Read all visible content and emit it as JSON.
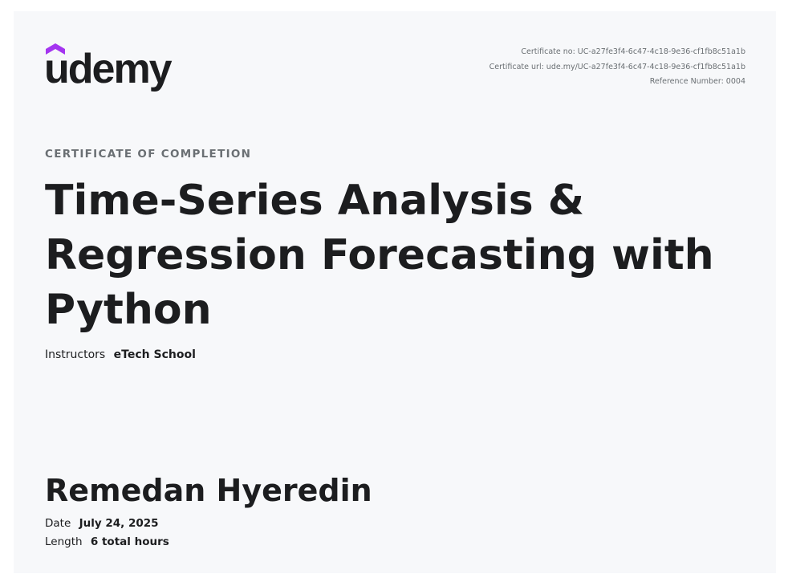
{
  "logo": {
    "text": "udemy",
    "cap_color": "#a435f0",
    "text_color": "#1c1d1f"
  },
  "meta": {
    "certificate_no": "Certificate no: UC-a27fe3f4-6c47-4c18-9e36-cf1fb8c51a1b",
    "certificate_url": "Certificate url: ude.my/UC-a27fe3f4-6c47-4c18-9e36-cf1fb8c51a1b",
    "reference_number": "Reference Number: 0004"
  },
  "certificate_label": "CERTIFICATE OF COMPLETION",
  "course_title": "Time-Series Analysis & Regression Forecasting with Python",
  "instructors": {
    "label": "Instructors",
    "value": "eTech School"
  },
  "student_name": "Remedan Hyeredin",
  "date": {
    "label": "Date",
    "value": "July 24, 2025"
  },
  "length": {
    "label": "Length",
    "value": "6 total hours"
  },
  "colors": {
    "background": "#f7f8fa",
    "text": "#1c1d1f",
    "muted": "#6a6f73",
    "accent": "#a435f0"
  }
}
